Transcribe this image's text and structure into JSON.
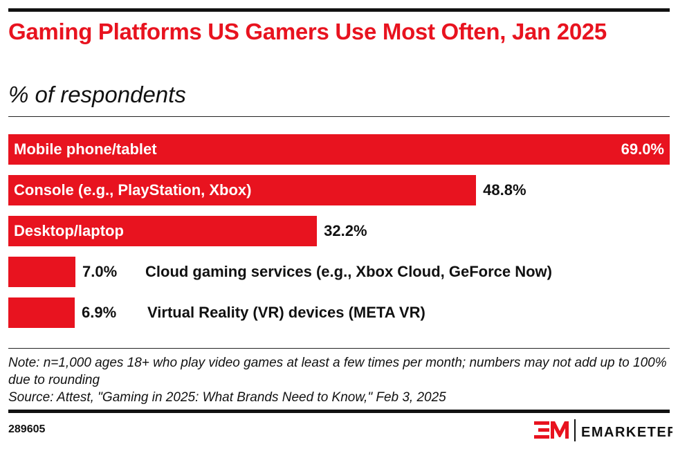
{
  "title": "Gaming Platforms US Gamers Use Most Often, Jan 2025",
  "subtitle": "% of respondents",
  "chart_data": {
    "type": "bar",
    "orientation": "horizontal",
    "categories": [
      "Mobile phone/tablet",
      "Console (e.g., PlayStation, Xbox)",
      "Desktop/laptop",
      "Cloud gaming services (e.g., Xbox Cloud, GeForce Now)",
      "Virtual Reality (VR) devices (META VR)"
    ],
    "values": [
      69.0,
      48.8,
      32.2,
      7.0,
      6.9
    ],
    "value_labels": [
      "69.0%",
      "48.8%",
      "32.2%",
      "7.0%",
      "6.9%"
    ],
    "color": "#e8131f",
    "xlim": [
      0,
      69.0
    ]
  },
  "note": "Note: n=1,000 ages 18+ who play video games at least a few times per month; numbers may not add up to 100% due to rounding",
  "source": "Source: Attest, \"Gaming in 2025: What Brands Need to Know,\" Feb 3, 2025",
  "chart_id": "289605",
  "brand": "EMARKETER"
}
